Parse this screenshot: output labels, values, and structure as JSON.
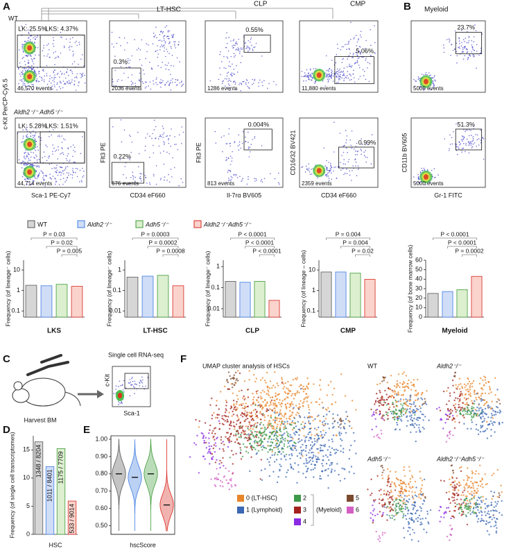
{
  "letters": [
    "A",
    "B",
    "C",
    "D",
    "E",
    "F"
  ],
  "flow": {
    "titles": [
      "LT-HSC",
      "CLP",
      "CMP",
      "Myeloid"
    ],
    "rows": [
      {
        "label": "WT",
        "plots": [
          {
            "gates": [
              "LK: 25.5%",
              "LKS: 4.37%"
            ],
            "events": "46,570 events"
          },
          {
            "gates": [
              "0.3%"
            ],
            "events": "2036 events"
          },
          {
            "gates": [
              "0.55%"
            ],
            "events": "1286 events"
          },
          {
            "gates": [
              "5.06%"
            ],
            "events": "11,880 events"
          },
          {
            "gates": [
              "23.7%"
            ],
            "events": "5000 events"
          }
        ]
      },
      {
        "label": "Aldh2⁻/⁻ Adh5⁻/⁻",
        "plots": [
          {
            "gates": [
              "LK: 5.28%",
              "LKS: 1.51%"
            ],
            "events": "44,714 events"
          },
          {
            "gates": [
              "0.22%"
            ],
            "events": "676 events"
          },
          {
            "gates": [
              "0.004%"
            ],
            "events": "813 events"
          },
          {
            "gates": [
              "0.99%"
            ],
            "events": "2359 events"
          },
          {
            "gates": [
              "51.3%"
            ],
            "events": "5000 events"
          }
        ]
      }
    ],
    "axes": [
      {
        "xlabel": "Sca-1 PE-Cy7",
        "ylabel": "c-Kit PerCP-Cy5.5"
      },
      {
        "xlabel": "CD34 eF660",
        "ylabel": "Flt3 PE"
      },
      {
        "xlabel": "Il-7rα BV605",
        "ylabel": "Flt3 PE"
      },
      {
        "xlabel": "CD34 eF660",
        "ylabel": "CD16/32 BV421"
      },
      {
        "xlabel": "Gr-1 FITC",
        "ylabel": "CD11b BV605"
      }
    ]
  },
  "genotypes": [
    {
      "name": "WT",
      "color": "#d6d6d6",
      "mark_color": "#555555"
    },
    {
      "name": "Aldh2⁻/⁻",
      "color": "#d0ddf7",
      "mark_color": "#3d7be0"
    },
    {
      "name": "Adh5⁻/⁻",
      "color": "#dcefcf",
      "mark_color": "#3c9a36"
    },
    {
      "name": "Aldh2⁻/⁻Adh5⁻/⁻",
      "color": "#f9d3cc",
      "mark_color": "#d8261c"
    }
  ],
  "chart_data": [
    {
      "type": "bar",
      "xlabel": "LKS",
      "ylabel": "Frequency (of lineage⁻ cells)",
      "log": true,
      "values": [
        1.8,
        1.7,
        2.0,
        1.6
      ],
      "ylim": [
        0.05,
        30
      ],
      "yticks": [
        0.1,
        1,
        10
      ],
      "pvalues": [
        "P = 0.03",
        "P = 0.02",
        "P = 0.005"
      ]
    },
    {
      "type": "bar",
      "xlabel": "LT-HSC",
      "ylabel": "Frequency (of lineage⁻ cells)",
      "log": true,
      "values": [
        0.45,
        0.5,
        0.55,
        0.17
      ],
      "ylim": [
        0.005,
        3
      ],
      "yticks": [
        0.01,
        0.1,
        1
      ],
      "pvalues": [
        "P = 0.0003",
        "P = 0.0002",
        "P = 0.0008"
      ]
    },
    {
      "type": "bar",
      "xlabel": "CLP",
      "ylabel": "Frequency (of lineage⁻ cells)",
      "log": true,
      "values": [
        0.2,
        0.18,
        0.2,
        0.025
      ],
      "ylim": [
        0.004,
        2
      ],
      "yticks": [
        0.01,
        0.1,
        1
      ],
      "pvalues": [
        "P < 0.0001",
        "P < 0.0001",
        "P < 0.0001"
      ]
    },
    {
      "type": "bar",
      "xlabel": "CMP",
      "ylabel": "Frequency (of lineage – cells)",
      "log": true,
      "values": [
        8,
        8,
        7,
        3.5
      ],
      "ylim": [
        0.05,
        30
      ],
      "yticks": [
        0.1,
        1,
        10
      ],
      "pvalues": [
        "P = 0.004",
        "P = 0.004",
        "P = 0.02"
      ]
    },
    {
      "type": "bar",
      "xlabel": "Myeloid",
      "ylabel": "Frequency (of bone marrow cells)",
      "log": false,
      "values": [
        25,
        27,
        29,
        43
      ],
      "ylim": [
        0,
        60
      ],
      "yticks": [
        0,
        10,
        20,
        30,
        40,
        50,
        60
      ],
      "pvalues": [
        "P < 0.0001",
        "P < 0.0001",
        "P = 0.0002"
      ]
    },
    {
      "type": "bar",
      "xlabel": "HSC",
      "ylabel": "Frequency (of single cell transcriptomes)",
      "log": false,
      "values": [
        16.43,
        12.03,
        15.24,
        5.91
      ],
      "value_labels": [
        "1348 / 8204",
        "1011 / 8401",
        "1175 / 7709",
        "533 / 9014"
      ],
      "ylim": [
        0,
        17.5
      ],
      "yticks": [
        0,
        5,
        10,
        15
      ]
    },
    {
      "type": "violin",
      "xlabel": "hscScore",
      "values": [
        0.8,
        0.78,
        0.8,
        0.62
      ],
      "ylim": [
        0.45,
        1.02
      ],
      "yticks": [
        {
          "value": 0.5,
          "label": "0.50"
        },
        {
          "value": 0.6,
          "label": "0.60"
        },
        {
          "value": 0.7,
          "label": "0.70"
        },
        {
          "value": 0.8,
          "label": "0.80"
        },
        {
          "value": 0.9,
          "label": "0.90"
        },
        {
          "value": 1.0,
          "label": "1.00"
        }
      ]
    }
  ],
  "scrna": {
    "title": "Single cell RNA-seq",
    "harvest": "Harvest BM",
    "xlabel": "Sca-1",
    "ylabel": "c-Kit"
  },
  "umap": {
    "title": "UMAP cluster analysis of HSCs",
    "panels": [
      "WT",
      "Aldh2⁻/⁻",
      "Adh5⁻/⁻",
      "Aldh2⁻/⁻Adh5⁻/⁻"
    ],
    "clusters": [
      {
        "name": "0 (LT-HSC)",
        "color": "#e8852b"
      },
      {
        "name": "1 (Lymphoid)",
        "color": "#3b67b3"
      },
      {
        "name": "2",
        "color": "#3e9a4b"
      },
      {
        "name": "3",
        "color": "#a3221d"
      },
      {
        "name": "4",
        "color": "#8a2be2"
      },
      {
        "name": "5",
        "color": "#7b4a2e"
      },
      {
        "name": "6",
        "color": "#d35fc4"
      }
    ],
    "group_label": "(Myeloid)"
  }
}
